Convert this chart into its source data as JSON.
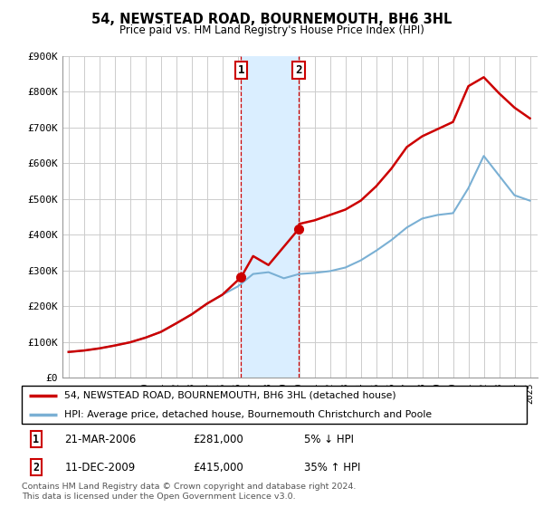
{
  "title": "54, NEWSTEAD ROAD, BOURNEMOUTH, BH6 3HL",
  "subtitle": "Price paid vs. HM Land Registry's House Price Index (HPI)",
  "legend_line1": "54, NEWSTEAD ROAD, BOURNEMOUTH, BH6 3HL (detached house)",
  "legend_line2": "HPI: Average price, detached house, Bournemouth Christchurch and Poole",
  "footnote": "Contains HM Land Registry data © Crown copyright and database right 2024.\nThis data is licensed under the Open Government Licence v3.0.",
  "transaction1": {
    "label": "1",
    "date": "21-MAR-2006",
    "price": "£281,000",
    "hpi": "5% ↓ HPI"
  },
  "transaction2": {
    "label": "2",
    "date": "11-DEC-2009",
    "price": "£415,000",
    "hpi": "35% ↑ HPI"
  },
  "red_color": "#cc0000",
  "blue_color": "#7ab0d4",
  "shade_color": "#daeeff",
  "background_color": "#ffffff",
  "grid_color": "#cccccc",
  "ylim": [
    0,
    900000
  ],
  "yticks": [
    0,
    100000,
    200000,
    300000,
    400000,
    500000,
    600000,
    700000,
    800000,
    900000
  ],
  "hpi_years": [
    1995,
    1996,
    1997,
    1998,
    1999,
    2000,
    2001,
    2002,
    2003,
    2004,
    2005,
    2006,
    2007,
    2008,
    2009,
    2010,
    2011,
    2012,
    2013,
    2014,
    2015,
    2016,
    2017,
    2018,
    2019,
    2020,
    2021,
    2022,
    2023,
    2024,
    2025
  ],
  "hpi_values": [
    72000,
    76000,
    82000,
    90000,
    99000,
    112000,
    128000,
    152000,
    177000,
    207000,
    232000,
    255000,
    290000,
    295000,
    278000,
    290000,
    293000,
    298000,
    308000,
    328000,
    355000,
    385000,
    420000,
    445000,
    455000,
    460000,
    530000,
    620000,
    565000,
    510000,
    495000
  ],
  "red_years": [
    1995,
    1996,
    1997,
    1998,
    1999,
    2000,
    2001,
    2002,
    2003,
    2004,
    2005,
    2006.22,
    2007,
    2008,
    2009.95,
    2010,
    2011,
    2012,
    2013,
    2014,
    2015,
    2016,
    2017,
    2018,
    2019,
    2020,
    2021,
    2022,
    2023,
    2024,
    2025
  ],
  "red_values": [
    72000,
    76000,
    82000,
    90000,
    99000,
    112000,
    128000,
    152000,
    177000,
    207000,
    232000,
    281000,
    340000,
    315000,
    415000,
    430000,
    440000,
    455000,
    470000,
    495000,
    535000,
    585000,
    645000,
    675000,
    695000,
    715000,
    815000,
    840000,
    795000,
    755000,
    725000
  ],
  "trans1_x": 2006.22,
  "trans1_y": 281000,
  "trans2_x": 2009.95,
  "trans2_y": 415000,
  "shade_x1": 2006.22,
  "shade_x2": 2009.95,
  "xlim_left": 1994.6,
  "xlim_right": 2025.5
}
